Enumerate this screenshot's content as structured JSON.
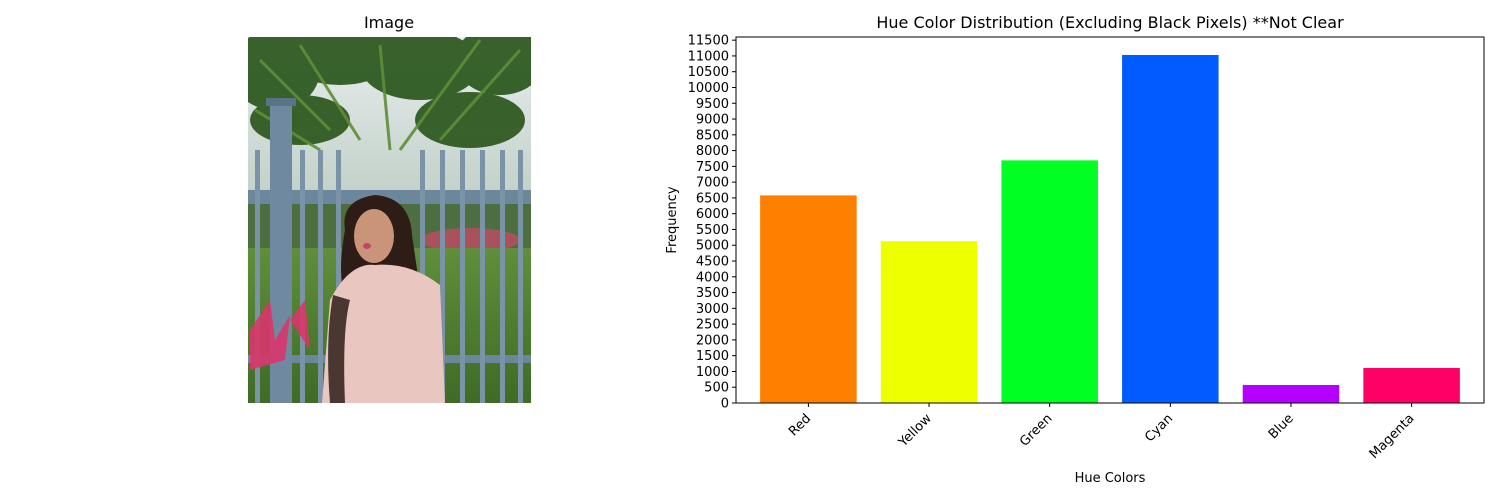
{
  "image_panel": {
    "title": "Image"
  },
  "chart_data": {
    "type": "bar",
    "title": "Hue Color Distribution (Excluding Black Pixels) **Not Clear",
    "xlabel": "Hue Colors",
    "ylabel": "Frequency",
    "categories": [
      "Red",
      "Yellow",
      "Green",
      "Cyan",
      "Blue",
      "Magenta"
    ],
    "values": [
      6580,
      5130,
      7690,
      11030,
      570,
      1110
    ],
    "colors": [
      "#ff7f00",
      "#eeff00",
      "#00ff22",
      "#005cff",
      "#b400ff",
      "#ff0066"
    ],
    "ylim": [
      0,
      11600
    ],
    "yticks": [
      0,
      500,
      1000,
      1500,
      2000,
      2500,
      3000,
      3500,
      4000,
      4500,
      5000,
      5500,
      6000,
      6500,
      7000,
      7500,
      8000,
      8500,
      9000,
      9500,
      10000,
      10500,
      11000,
      11500
    ],
    "grid": false,
    "legend": "none"
  }
}
